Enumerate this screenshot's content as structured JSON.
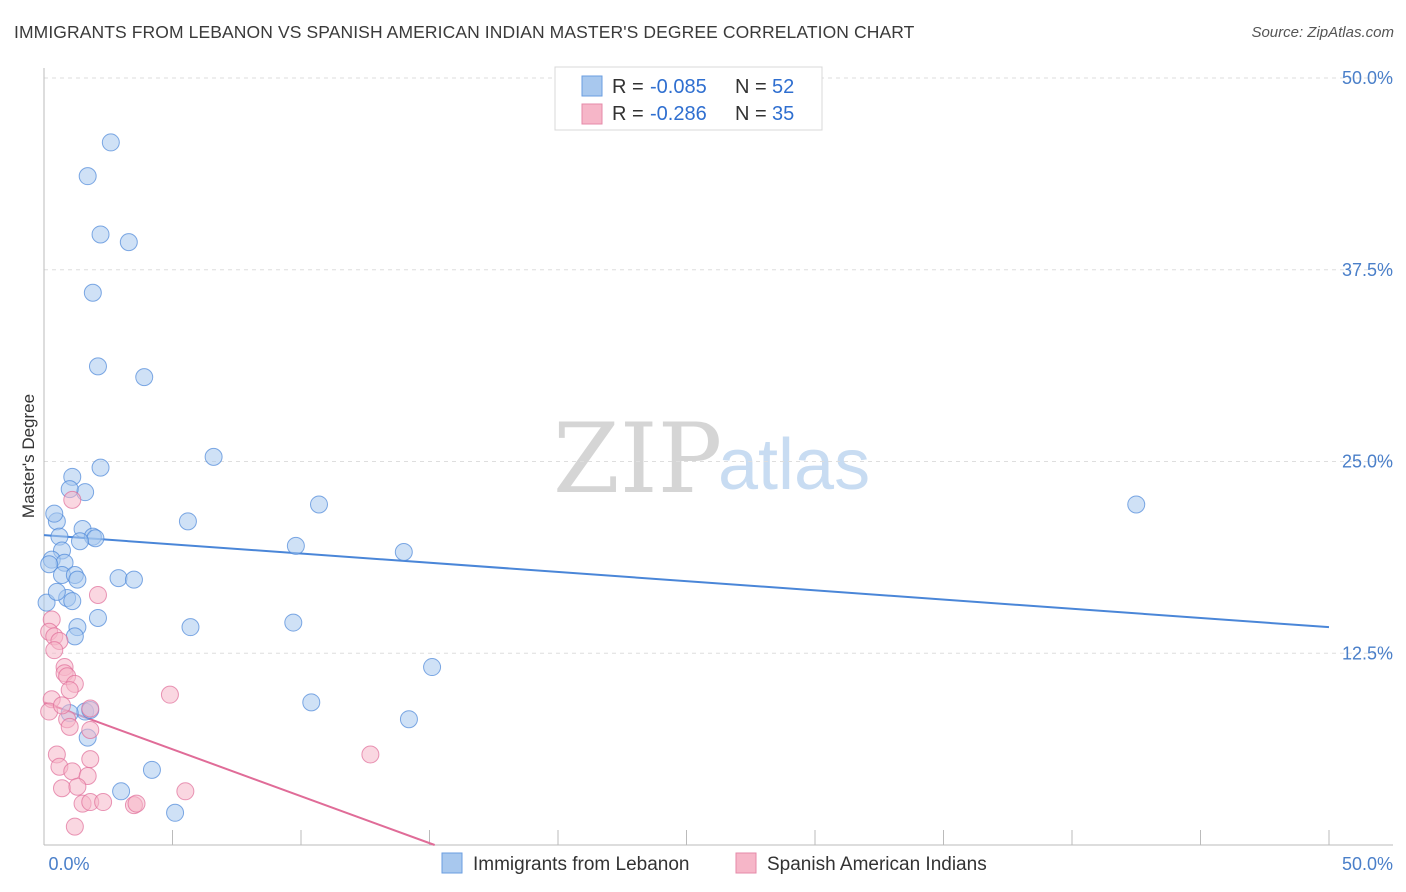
{
  "title": "IMMIGRANTS FROM LEBANON VS SPANISH AMERICAN INDIAN MASTER'S DEGREE CORRELATION CHART",
  "source": "Source: ZipAtlas.com",
  "watermark": {
    "zip": "ZIP",
    "atlas": "atlas"
  },
  "legend": {
    "rows": [
      {
        "r_label": "R =",
        "r_value": "-0.085",
        "n_label": "N =",
        "n_value": "52",
        "color": "#a8c8ee"
      },
      {
        "r_label": "R =",
        "r_value": "-0.286",
        "n_label": "N =",
        "n_value": "35",
        "color": "#f6b6c8"
      }
    ]
  },
  "bottom_legend": {
    "series1": "Immigrants from Lebanon",
    "series2": "Spanish American Indians"
  },
  "chart_data": {
    "type": "scatter",
    "title": "IMMIGRANTS FROM LEBANON VS SPANISH AMERICAN INDIAN MASTER'S DEGREE CORRELATION CHART",
    "xlabel": "",
    "ylabel": "Master's Degree",
    "xlim": [
      0,
      50
    ],
    "ylim": [
      0,
      50
    ],
    "x_tick_labels": [
      "0.0%",
      "50.0%"
    ],
    "y_tick_labels": [
      "12.5%",
      "25.0%",
      "37.5%",
      "50.0%"
    ],
    "y_ticks": [
      12.5,
      25.0,
      37.5,
      50.0
    ],
    "grid": true,
    "series": [
      {
        "name": "Immigrants from Lebanon",
        "color": "#4a86d8",
        "fill": "#a8c8ee",
        "r": -0.085,
        "n": 52,
        "trend": {
          "x": [
            0,
            50
          ],
          "y": [
            20.2,
            14.2
          ]
        },
        "points": [
          {
            "x": 2.6,
            "y": 45.8
          },
          {
            "x": 1.7,
            "y": 43.6
          },
          {
            "x": 2.2,
            "y": 39.8
          },
          {
            "x": 3.3,
            "y": 39.3
          },
          {
            "x": 1.9,
            "y": 36.0
          },
          {
            "x": 2.1,
            "y": 31.2
          },
          {
            "x": 3.9,
            "y": 30.5
          },
          {
            "x": 6.6,
            "y": 25.3
          },
          {
            "x": 2.2,
            "y": 24.6
          },
          {
            "x": 1.1,
            "y": 24.0
          },
          {
            "x": 1.6,
            "y": 23.0
          },
          {
            "x": 1.0,
            "y": 23.2
          },
          {
            "x": 10.7,
            "y": 22.2
          },
          {
            "x": 5.6,
            "y": 21.1
          },
          {
            "x": 0.5,
            "y": 21.1
          },
          {
            "x": 0.4,
            "y": 21.6
          },
          {
            "x": 1.5,
            "y": 20.6
          },
          {
            "x": 0.6,
            "y": 20.1
          },
          {
            "x": 1.9,
            "y": 20.1
          },
          {
            "x": 2.0,
            "y": 20.0
          },
          {
            "x": 9.8,
            "y": 19.5
          },
          {
            "x": 14.0,
            "y": 19.1
          },
          {
            "x": 0.7,
            "y": 19.2
          },
          {
            "x": 0.3,
            "y": 18.6
          },
          {
            "x": 0.8,
            "y": 18.4
          },
          {
            "x": 0.2,
            "y": 18.3
          },
          {
            "x": 0.7,
            "y": 17.6
          },
          {
            "x": 1.2,
            "y": 17.6
          },
          {
            "x": 1.3,
            "y": 17.3
          },
          {
            "x": 2.9,
            "y": 17.4
          },
          {
            "x": 3.5,
            "y": 17.3
          },
          {
            "x": 0.9,
            "y": 16.1
          },
          {
            "x": 1.1,
            "y": 15.9
          },
          {
            "x": 0.1,
            "y": 15.8
          },
          {
            "x": 2.1,
            "y": 14.8
          },
          {
            "x": 9.7,
            "y": 14.5
          },
          {
            "x": 5.7,
            "y": 14.2
          },
          {
            "x": 1.3,
            "y": 14.2
          },
          {
            "x": 1.2,
            "y": 13.6
          },
          {
            "x": 15.1,
            "y": 11.6
          },
          {
            "x": 10.4,
            "y": 9.3
          },
          {
            "x": 14.2,
            "y": 8.2
          },
          {
            "x": 1.6,
            "y": 8.7
          },
          {
            "x": 1.8,
            "y": 8.8
          },
          {
            "x": 1.7,
            "y": 7.0
          },
          {
            "x": 4.2,
            "y": 4.9
          },
          {
            "x": 3.0,
            "y": 3.5
          },
          {
            "x": 5.1,
            "y": 2.1
          },
          {
            "x": 42.5,
            "y": 22.2
          },
          {
            "x": 1.0,
            "y": 8.6
          },
          {
            "x": 0.5,
            "y": 16.5
          },
          {
            "x": 1.4,
            "y": 19.8
          }
        ]
      },
      {
        "name": "Spanish American Indians",
        "color": "#e06c98",
        "fill": "#f6b6c8",
        "r": -0.286,
        "n": 35,
        "trend": {
          "x": [
            0,
            15.2
          ],
          "y": [
            9.3,
            0
          ]
        },
        "points": [
          {
            "x": 1.1,
            "y": 22.5
          },
          {
            "x": 2.1,
            "y": 16.3
          },
          {
            "x": 0.3,
            "y": 14.7
          },
          {
            "x": 0.2,
            "y": 13.9
          },
          {
            "x": 0.4,
            "y": 13.6
          },
          {
            "x": 0.6,
            "y": 13.3
          },
          {
            "x": 0.4,
            "y": 12.7
          },
          {
            "x": 0.8,
            "y": 11.6
          },
          {
            "x": 0.8,
            "y": 11.2
          },
          {
            "x": 0.9,
            "y": 11.0
          },
          {
            "x": 1.2,
            "y": 10.5
          },
          {
            "x": 1.0,
            "y": 10.1
          },
          {
            "x": 0.3,
            "y": 9.5
          },
          {
            "x": 4.9,
            "y": 9.8
          },
          {
            "x": 1.8,
            "y": 8.9
          },
          {
            "x": 0.2,
            "y": 8.7
          },
          {
            "x": 0.9,
            "y": 8.2
          },
          {
            "x": 1.0,
            "y": 7.7
          },
          {
            "x": 1.8,
            "y": 7.5
          },
          {
            "x": 0.5,
            "y": 5.9
          },
          {
            "x": 12.7,
            "y": 5.9
          },
          {
            "x": 1.8,
            "y": 5.6
          },
          {
            "x": 0.6,
            "y": 5.1
          },
          {
            "x": 1.1,
            "y": 4.8
          },
          {
            "x": 1.7,
            "y": 4.5
          },
          {
            "x": 0.7,
            "y": 3.7
          },
          {
            "x": 5.5,
            "y": 3.5
          },
          {
            "x": 1.5,
            "y": 2.7
          },
          {
            "x": 1.8,
            "y": 2.8
          },
          {
            "x": 2.3,
            "y": 2.8
          },
          {
            "x": 3.5,
            "y": 2.6
          },
          {
            "x": 3.6,
            "y": 2.7
          },
          {
            "x": 1.2,
            "y": 1.2
          },
          {
            "x": 1.3,
            "y": 3.8
          },
          {
            "x": 0.7,
            "y": 9.1
          }
        ]
      }
    ]
  }
}
